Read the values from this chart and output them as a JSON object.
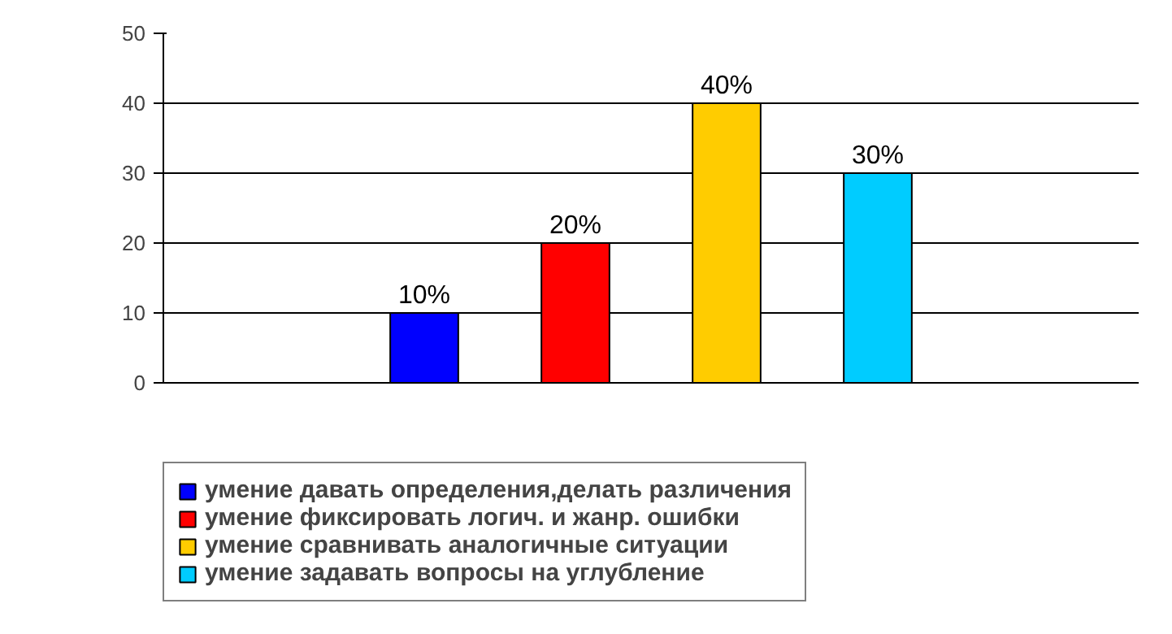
{
  "chart_data": {
    "type": "bar",
    "categories": [
      null
    ],
    "series": [
      {
        "name": "умение давать определения,делать различения",
        "color": "#0000ff",
        "values": [
          10
        ],
        "value_labels": [
          "10%"
        ]
      },
      {
        "name": "умение фиксировать логич. и жанр. ошибки",
        "color": "#ff0000",
        "values": [
          20
        ],
        "value_labels": [
          "20%"
        ]
      },
      {
        "name": "умение сравнивать аналогичные ситуации",
        "color": "#ffcc00",
        "values": [
          40
        ],
        "value_labels": [
          "40%"
        ]
      },
      {
        "name": "умение задавать вопросы на углубление",
        "color": "#00ccff",
        "values": [
          30
        ],
        "value_labels": [
          "30%"
        ]
      }
    ],
    "ylim": [
      0,
      50
    ],
    "yticks": [
      0,
      10,
      20,
      30,
      40,
      50
    ],
    "grid": "y",
    "legend": "bottom"
  }
}
